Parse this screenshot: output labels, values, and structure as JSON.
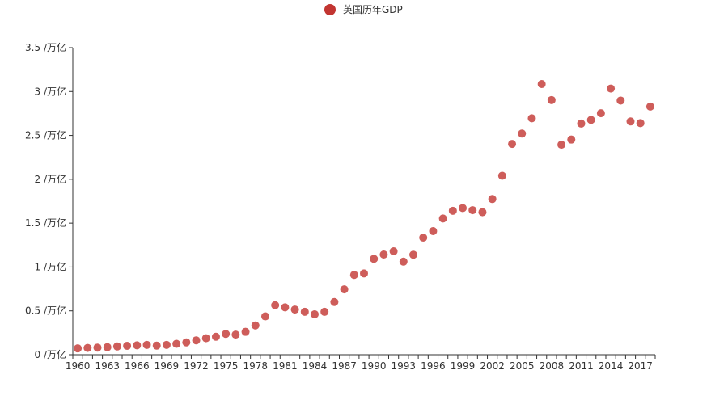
{
  "chart_data": {
    "type": "scatter",
    "title": "",
    "xlabel": "",
    "ylabel": "",
    "legend": {
      "position": "top-center",
      "entries": [
        "英国历年GDP"
      ]
    },
    "grid": false,
    "colors": {
      "series": "#c23531",
      "axis": "#333333"
    },
    "ylim": [
      0,
      3.5
    ],
    "y_ticks": [
      {
        "value": 0,
        "label": "0 /万亿"
      },
      {
        "value": 0.5,
        "label": "0.5 /万亿"
      },
      {
        "value": 1,
        "label": "1 /万亿"
      },
      {
        "value": 1.5,
        "label": "1.5 /万亿"
      },
      {
        "value": 2,
        "label": "2 /万亿"
      },
      {
        "value": 2.5,
        "label": "2.5 /万亿"
      },
      {
        "value": 3,
        "label": "3 /万亿"
      },
      {
        "value": 3.5,
        "label": "3.5 /万亿"
      }
    ],
    "x_tick_labels": [
      "1960",
      "1963",
      "1966",
      "1969",
      "1972",
      "1975",
      "1978",
      "1981",
      "1984",
      "1987",
      "1990",
      "1993",
      "1996",
      "1999",
      "2002",
      "2005",
      "2008",
      "2011",
      "2014",
      "2017"
    ],
    "series": [
      {
        "name": "英国历年GDP",
        "x": [
          1960,
          1961,
          1962,
          1963,
          1964,
          1965,
          1966,
          1967,
          1968,
          1969,
          1970,
          1971,
          1972,
          1973,
          1974,
          1975,
          1976,
          1977,
          1978,
          1979,
          1980,
          1981,
          1982,
          1983,
          1984,
          1985,
          1986,
          1987,
          1988,
          1989,
          1990,
          1991,
          1992,
          1993,
          1994,
          1995,
          1996,
          1997,
          1998,
          1999,
          2000,
          2001,
          2002,
          2003,
          2004,
          2005,
          2006,
          2007,
          2008,
          2009,
          2010,
          2011,
          2012,
          2013,
          2014,
          2015,
          2016,
          2017,
          2018
        ],
        "values": [
          0.072,
          0.077,
          0.081,
          0.086,
          0.094,
          0.101,
          0.107,
          0.112,
          0.104,
          0.112,
          0.124,
          0.141,
          0.164,
          0.188,
          0.205,
          0.237,
          0.229,
          0.261,
          0.334,
          0.437,
          0.564,
          0.54,
          0.515,
          0.489,
          0.461,
          0.489,
          0.601,
          0.745,
          0.91,
          0.927,
          1.093,
          1.142,
          1.179,
          1.061,
          1.14,
          1.335,
          1.409,
          1.553,
          1.641,
          1.672,
          1.648,
          1.625,
          1.775,
          2.04,
          2.403,
          2.521,
          2.695,
          3.085,
          2.903,
          2.394,
          2.453,
          2.635,
          2.677,
          2.753,
          3.034,
          2.897,
          2.659,
          2.64,
          2.829
        ]
      }
    ]
  }
}
